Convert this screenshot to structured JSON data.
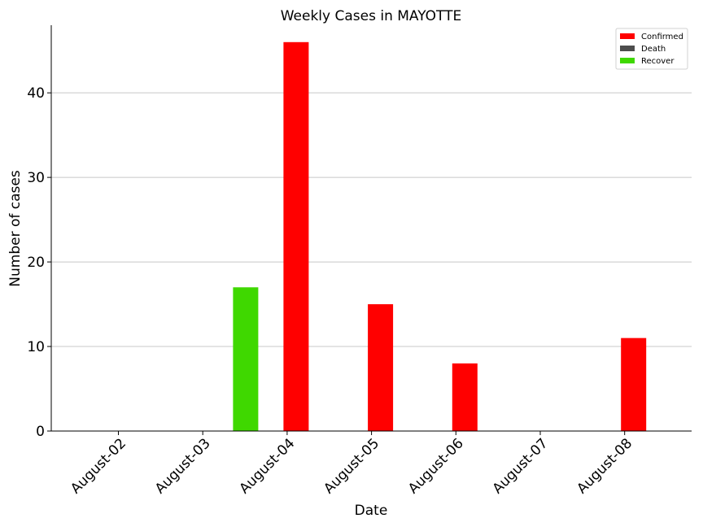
{
  "chart_data": {
    "type": "bar",
    "title": "Weekly Cases in MAYOTTE",
    "xlabel": "Date",
    "ylabel": "Number of cases",
    "categories": [
      "August-02",
      "August-03",
      "August-04",
      "August-05",
      "August-06",
      "August-07",
      "August-08"
    ],
    "series": [
      {
        "name": "Confirmed",
        "color": "#ff0000",
        "values": [
          0,
          0,
          46,
          15,
          8,
          0,
          11
        ]
      },
      {
        "name": "Death",
        "color": "#4d4d4d",
        "values": [
          0,
          0,
          0,
          0,
          0,
          0,
          0
        ]
      },
      {
        "name": "Recover",
        "color": "#3fd800",
        "values": [
          0,
          0,
          17,
          0,
          0,
          0,
          0
        ]
      }
    ],
    "ylim": [
      0,
      48
    ],
    "yticks": [
      0,
      10,
      20,
      30,
      40
    ],
    "grid": "horizontal",
    "legend": "top-right"
  }
}
